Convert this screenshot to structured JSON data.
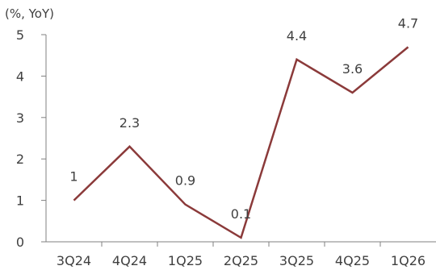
{
  "chart_data": {
    "type": "line",
    "title": "",
    "xlabel": "",
    "ylabel": "(%, YoY)",
    "categories": [
      "3Q24",
      "4Q24",
      "1Q25",
      "2Q25",
      "3Q25",
      "4Q25",
      "1Q26"
    ],
    "series": [
      {
        "values": [
          1,
          2.3,
          0.9,
          0.1,
          4.4,
          3.6,
          4.7
        ],
        "labels": [
          "1",
          "2.3",
          "0.9",
          "0.1",
          "4.4",
          "3.6",
          "4.7"
        ],
        "color": "#8b3a3a"
      }
    ],
    "ylim": [
      0,
      5
    ],
    "yticks": [
      "0",
      "1",
      "2",
      "3",
      "4",
      "5"
    ],
    "grid": false,
    "legend": "none"
  }
}
